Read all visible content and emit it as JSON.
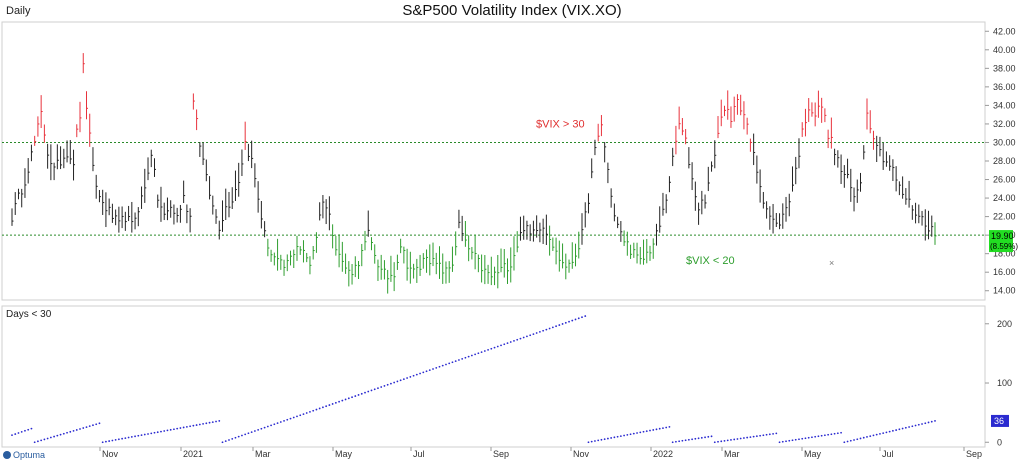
{
  "chart_data": [
    {
      "type": "ohlc",
      "title": "S&P500 Volatility Index (VIX.XO)",
      "period": "Daily",
      "ylim": [
        13,
        43
      ],
      "y_ticks": [
        "14.00",
        "16.00",
        "18.00",
        "20.00",
        "22.00",
        "24.00",
        "26.00",
        "28.00",
        "30.00",
        "32.00",
        "34.00",
        "36.00",
        "38.00",
        "40.00",
        "42.00"
      ],
      "x_ticks": [
        "Nov",
        "2021",
        "Mar",
        "May",
        "Jul",
        "Sep",
        "Nov",
        "2022",
        "Mar",
        "May",
        "Jul",
        "Sep"
      ],
      "reference_lines": [
        {
          "value": 30,
          "label": "$VIX > 30",
          "color": "#e03030"
        },
        {
          "value": 20,
          "label": "$VIX < 20",
          "color": "#2e9e2e"
        }
      ],
      "last_value": "19.90",
      "last_change": "(8.59%)",
      "series_colors": {
        "above": "#e8323c",
        "between": "#222222",
        "below": "#2e9e2e"
      },
      "anchors": [
        [
          0,
          22
        ],
        [
          4,
          26
        ],
        [
          7,
          30
        ],
        [
          9,
          33
        ],
        [
          11,
          29
        ],
        [
          13,
          27
        ],
        [
          15,
          28
        ],
        [
          17,
          29
        ],
        [
          19,
          28
        ],
        [
          20,
          31
        ],
        [
          21,
          33
        ],
        [
          22,
          38
        ],
        [
          23,
          34
        ],
        [
          25,
          27
        ],
        [
          27,
          24
        ],
        [
          29,
          23
        ],
        [
          31,
          22
        ],
        [
          33,
          21
        ],
        [
          35,
          22
        ],
        [
          37,
          21
        ],
        [
          39,
          23
        ],
        [
          41,
          25
        ],
        [
          43,
          29
        ],
        [
          45,
          24
        ],
        [
          47,
          22
        ],
        [
          49,
          23
        ],
        [
          51,
          22
        ],
        [
          53,
          24
        ],
        [
          55,
          22
        ],
        [
          56,
          35
        ],
        [
          58,
          30
        ],
        [
          60,
          26
        ],
        [
          62,
          23
        ],
        [
          64,
          21
        ],
        [
          66,
          23
        ],
        [
          68,
          24
        ],
        [
          70,
          26
        ],
        [
          72,
          30
        ],
        [
          74,
          28
        ],
        [
          76,
          24
        ],
        [
          78,
          20
        ],
        [
          80,
          18
        ],
        [
          82,
          17
        ],
        [
          84,
          16.5
        ],
        [
          86,
          17.5
        ],
        [
          88,
          19
        ],
        [
          90,
          18
        ],
        [
          92,
          17
        ],
        [
          94,
          20
        ],
        [
          96,
          24
        ],
        [
          98,
          22
        ],
        [
          100,
          19
        ],
        [
          102,
          17
        ],
        [
          104,
          16
        ],
        [
          106,
          16.5
        ],
        [
          108,
          18
        ],
        [
          110,
          20
        ],
        [
          112,
          18
        ],
        [
          114,
          16
        ],
        [
          116,
          15.5
        ],
        [
          118,
          16
        ],
        [
          120,
          19
        ],
        [
          122,
          17
        ],
        [
          124,
          16
        ],
        [
          126,
          16.5
        ],
        [
          128,
          18
        ],
        [
          130,
          17
        ],
        [
          132,
          16.5
        ],
        [
          134,
          16
        ],
        [
          136,
          17
        ],
        [
          138,
          21
        ],
        [
          140,
          19
        ],
        [
          142,
          18
        ],
        [
          144,
          17
        ],
        [
          146,
          16
        ],
        [
          148,
          15.5
        ],
        [
          150,
          16
        ],
        [
          152,
          16.5
        ],
        [
          154,
          17
        ],
        [
          156,
          19
        ],
        [
          158,
          21
        ],
        [
          160,
          20
        ],
        [
          162,
          21
        ],
        [
          164,
          21
        ],
        [
          166,
          20
        ],
        [
          168,
          18
        ],
        [
          170,
          17
        ],
        [
          172,
          16.5
        ],
        [
          174,
          18
        ],
        [
          176,
          20
        ],
        [
          178,
          24
        ],
        [
          180,
          29
        ],
        [
          182,
          32
        ],
        [
          184,
          27
        ],
        [
          186,
          22
        ],
        [
          188,
          20
        ],
        [
          190,
          19
        ],
        [
          192,
          18
        ],
        [
          194,
          17
        ],
        [
          196,
          18
        ],
        [
          198,
          19
        ],
        [
          200,
          21
        ],
        [
          202,
          24
        ],
        [
          204,
          28
        ],
        [
          206,
          32
        ],
        [
          208,
          30
        ],
        [
          210,
          26
        ],
        [
          212,
          23
        ],
        [
          214,
          24
        ],
        [
          216,
          27
        ],
        [
          218,
          31
        ],
        [
          220,
          34
        ],
        [
          222,
          32
        ],
        [
          224,
          35
        ],
        [
          226,
          33
        ],
        [
          228,
          30
        ],
        [
          230,
          27
        ],
        [
          232,
          24
        ],
        [
          234,
          22
        ],
        [
          236,
          21
        ],
        [
          238,
          22
        ],
        [
          240,
          24
        ],
        [
          242,
          27
        ],
        [
          244,
          31
        ],
        [
          246,
          34
        ],
        [
          248,
          33
        ],
        [
          250,
          34
        ],
        [
          252,
          31
        ],
        [
          254,
          29
        ],
        [
          256,
          27
        ],
        [
          258,
          26
        ],
        [
          260,
          24
        ],
        [
          262,
          26
        ],
        [
          264,
          33
        ],
        [
          266,
          31
        ],
        [
          268,
          29
        ],
        [
          270,
          28
        ],
        [
          272,
          27
        ],
        [
          274,
          25
        ],
        [
          276,
          24
        ],
        [
          278,
          23
        ],
        [
          280,
          22
        ],
        [
          282,
          21.5
        ],
        [
          284,
          20.5
        ],
        [
          285,
          19.9
        ]
      ],
      "total_days": 286
    },
    {
      "type": "line",
      "title": "Days < 30",
      "ylim": [
        -8,
        230
      ],
      "y_ticks": [
        0,
        100,
        200
      ],
      "last_value": "36",
      "line_color": "#2b2bd0"
    }
  ]
}
